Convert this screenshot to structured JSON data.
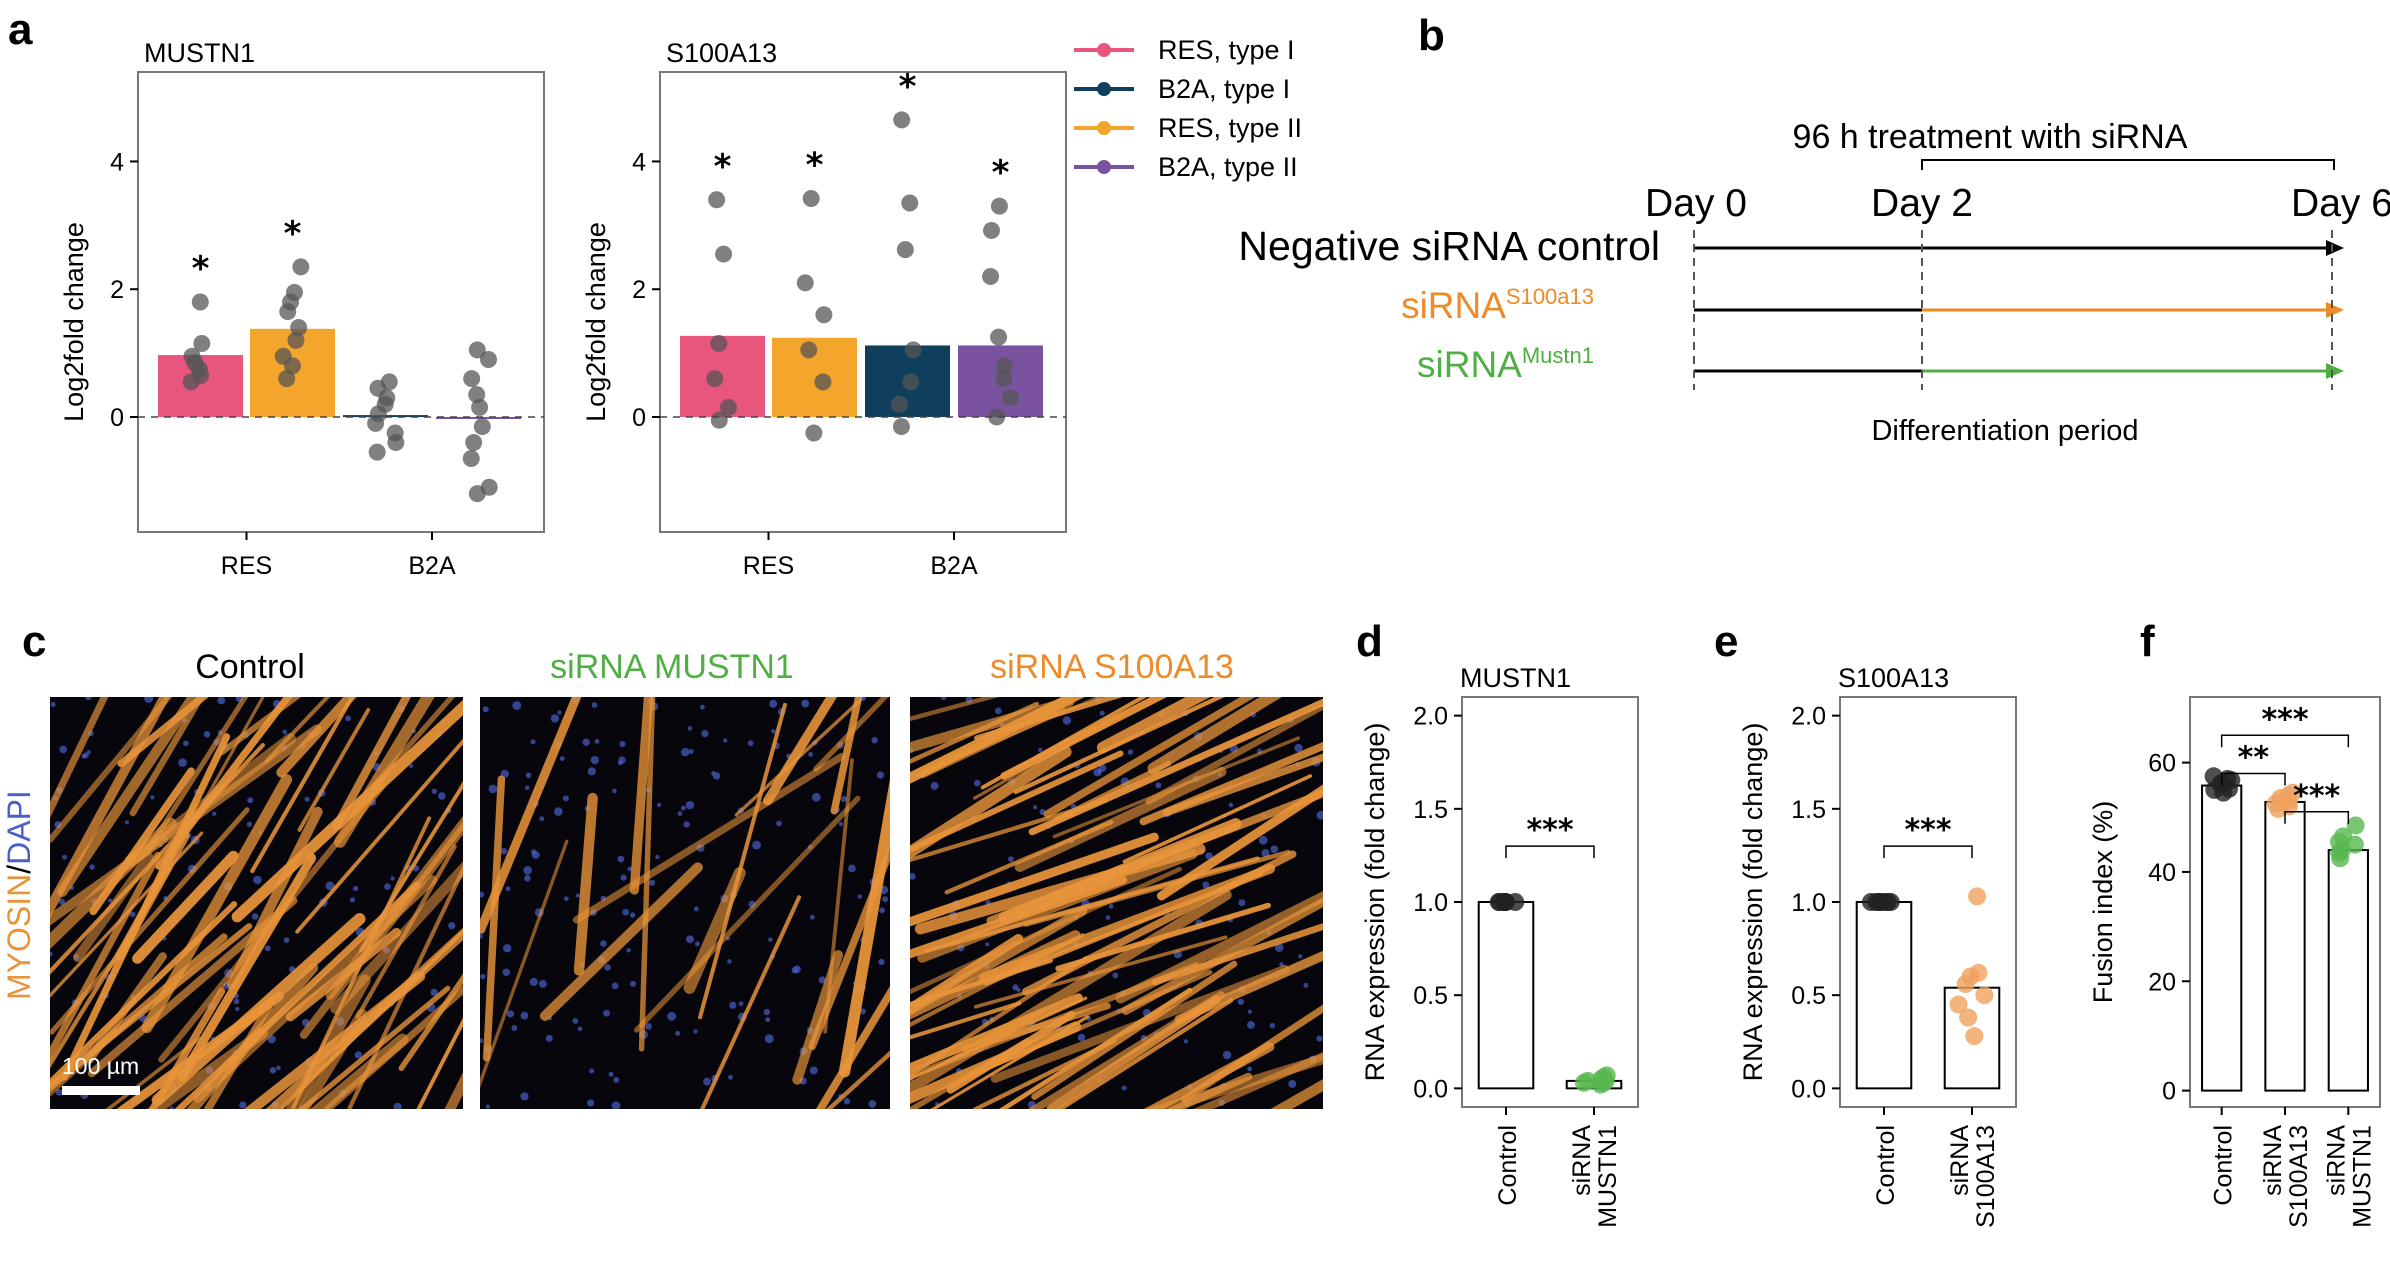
{
  "figure": {
    "panel_labels": [
      "a",
      "b",
      "c",
      "d",
      "e",
      "f"
    ],
    "colors": {
      "res_type1": "#e8567d",
      "b2a_type1": "#0f3f5c",
      "res_type2": "#f4a52b",
      "b2a_type2": "#7a53a0",
      "orange_text": "#ef8a28",
      "green_text": "#4fae44",
      "green_point": "#58b84f",
      "orange_point": "#f0a15e",
      "dot_gray": "#555555",
      "myosin": "#e8943a",
      "dapi": "#4a60c8"
    }
  },
  "legend": {
    "items": [
      {
        "label": "RES, type I",
        "color": "#e8567d"
      },
      {
        "label": "B2A, type I",
        "color": "#0f3f5c"
      },
      {
        "label": "RES, type II",
        "color": "#f4a52b"
      },
      {
        "label": "B2A, type II",
        "color": "#7a53a0"
      }
    ]
  },
  "timeline": {
    "header": "96 h treatment with siRNA",
    "days": [
      "Day 0",
      "Day 2",
      "Day 6"
    ],
    "rows": {
      "control": "Negative siRNA control",
      "s100_base": "siRNA",
      "s100_sup": "S100a13",
      "mustn_base": "siRNA",
      "mustn_sup": "Mustn1"
    },
    "footer": "Differentiation period"
  },
  "microscopy": {
    "titles": [
      "Control",
      "siRNA MUSTN1",
      "siRNA S100A13"
    ],
    "stain_label_a": "MYOSIN",
    "stain_label_sep": "/",
    "stain_label_b": "DAPI",
    "scale_bar": "100 µm"
  },
  "chart_data": [
    {
      "panel": "a",
      "type": "bar",
      "title": "MUSTN1",
      "ylabel": "Log2fold change",
      "xlabel": "",
      "ylim": [
        -1.8,
        5.4
      ],
      "yticks": [
        0,
        2,
        4
      ],
      "groups": [
        "RES",
        "B2A"
      ],
      "bars": [
        {
          "series": "RES, type I",
          "group": "RES",
          "value": 0.97,
          "star": "*",
          "points": [
            1.8,
            1.15,
            0.95,
            0.85,
            0.75,
            0.65,
            0.55
          ]
        },
        {
          "series": "RES, type II",
          "group": "RES",
          "value": 1.38,
          "star": "*",
          "points": [
            2.35,
            1.95,
            1.8,
            1.65,
            1.4,
            1.2,
            0.95,
            0.8,
            0.6
          ]
        },
        {
          "series": "B2A, type I",
          "group": "B2A",
          "value": 0.03,
          "star": "",
          "points": [
            0.55,
            0.45,
            0.3,
            0.2,
            0.05,
            -0.1,
            -0.25,
            -0.4,
            -0.55
          ]
        },
        {
          "series": "B2A, type II",
          "group": "B2A",
          "value": -0.02,
          "star": "",
          "points": [
            1.05,
            0.9,
            0.6,
            0.35,
            0.15,
            -0.15,
            -0.4,
            -0.65,
            -1.1,
            -1.2
          ]
        }
      ]
    },
    {
      "panel": "a",
      "type": "bar",
      "title": "S100A13",
      "ylabel": "Log2fold change",
      "xlabel": "",
      "ylim": [
        -1.8,
        5.4
      ],
      "yticks": [
        0,
        2,
        4
      ],
      "groups": [
        "RES",
        "B2A"
      ],
      "bars": [
        {
          "series": "RES, type I",
          "group": "RES",
          "value": 1.27,
          "star": "*",
          "points": [
            3.4,
            2.55,
            1.15,
            0.6,
            0.15,
            -0.05
          ]
        },
        {
          "series": "RES, type II",
          "group": "RES",
          "value": 1.24,
          "star": "*",
          "points": [
            3.42,
            2.1,
            1.6,
            1.05,
            0.55,
            -0.25
          ]
        },
        {
          "series": "B2A, type I",
          "group": "B2A",
          "value": 1.12,
          "star": "*",
          "points": [
            4.65,
            3.35,
            2.62,
            1.05,
            0.55,
            0.2,
            -0.15
          ]
        },
        {
          "series": "B2A, type II",
          "group": "B2A",
          "value": 1.12,
          "star": "*",
          "points": [
            3.3,
            2.92,
            2.2,
            1.25,
            0.8,
            0.6,
            0.3,
            0.0
          ]
        }
      ]
    },
    {
      "panel": "d",
      "type": "bar",
      "title": "MUSTN1",
      "ylabel": "RNA expression (fold change)",
      "xlabel": "",
      "ylim": [
        -0.1,
        2.1
      ],
      "yticks": [
        0.0,
        0.5,
        1.0,
        1.5,
        2.0
      ],
      "categories": [
        "Control",
        "siRNA MUSTN1"
      ],
      "values": [
        1.0,
        0.04
      ],
      "points": [
        [
          1.0,
          1.0,
          1.0,
          1.0,
          1.0,
          1.0,
          1.0,
          1.0
        ],
        [
          0.02,
          0.03,
          0.04,
          0.05,
          0.06,
          0.07,
          0.04,
          0.03
        ]
      ],
      "significance": [
        {
          "from": 0,
          "to": 1,
          "label": "***"
        }
      ]
    },
    {
      "panel": "e",
      "type": "bar",
      "title": "S100A13",
      "ylabel": "RNA expression (fold change)",
      "xlabel": "",
      "ylim": [
        -0.1,
        2.1
      ],
      "yticks": [
        0.0,
        0.5,
        1.0,
        1.5,
        2.0
      ],
      "categories": [
        "Control",
        "siRNA S100A13"
      ],
      "values": [
        1.0,
        0.54
      ],
      "points": [
        [
          1.0,
          1.0,
          1.0,
          1.0,
          1.0,
          1.0,
          1.0,
          1.0
        ],
        [
          1.03,
          0.62,
          0.56,
          0.5,
          0.45,
          0.38,
          0.28,
          0.6
        ]
      ],
      "significance": [
        {
          "from": 0,
          "to": 1,
          "label": "***"
        }
      ]
    },
    {
      "panel": "f",
      "type": "bar",
      "title": "",
      "ylabel": "Fusion index (%)",
      "xlabel": "",
      "ylim": [
        -3,
        72
      ],
      "yticks": [
        0,
        20,
        40,
        60
      ],
      "categories": [
        "Control",
        "siRNA S100A13",
        "siRNA MUSTN1"
      ],
      "values": [
        55.8,
        52.8,
        44
      ],
      "points": [
        [
          57.5,
          56.8,
          56,
          55.2,
          54.5,
          56.2,
          55,
          57
        ],
        [
          54.5,
          53.5,
          52.5,
          51.5,
          52,
          53,
          54
        ],
        [
          48.5,
          46.5,
          45,
          44,
          43.5,
          42.5,
          45.5
        ]
      ],
      "significance": [
        {
          "from": 0,
          "to": 2,
          "label": "***"
        },
        {
          "from": 0,
          "to": 1,
          "label": "**"
        },
        {
          "from": 1,
          "to": 2,
          "label": "***"
        }
      ]
    }
  ]
}
